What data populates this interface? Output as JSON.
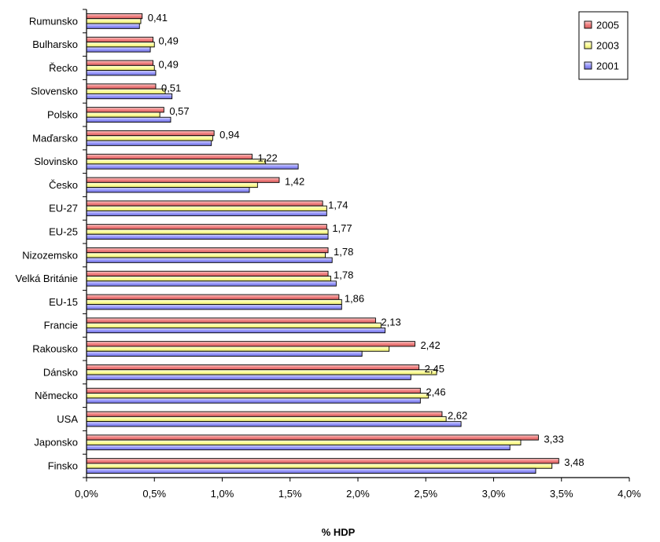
{
  "chart_data": {
    "type": "bar",
    "orientation": "horizontal",
    "xlabel": "% HDP",
    "xlim": [
      0,
      4.0
    ],
    "x_ticks": [
      "0,0%",
      "0,5%",
      "1,0%",
      "1,5%",
      "2,0%",
      "2,5%",
      "3,0%",
      "3,5%",
      "4,0%"
    ],
    "legend_position": "top-right",
    "grid": false,
    "categories": [
      "Rumunsko",
      "Bulharsko",
      "Řecko",
      "Slovensko",
      "Polsko",
      "Maďarsko",
      "Slovinsko",
      "Česko",
      "EU-27",
      "EU-25",
      "Nizozemsko",
      "Velká Británie",
      "EU-15",
      "Francie",
      "Rakousko",
      "Dánsko",
      "Německo",
      "USA",
      "Japonsko",
      "Finsko"
    ],
    "series": [
      {
        "name": "2005",
        "color": "#f08080",
        "values": [
          0.41,
          0.49,
          0.49,
          0.51,
          0.57,
          0.94,
          1.22,
          1.42,
          1.74,
          1.77,
          1.78,
          1.78,
          1.86,
          2.13,
          2.42,
          2.45,
          2.46,
          2.62,
          3.33,
          3.48
        ]
      },
      {
        "name": "2003",
        "color": "#ffff99",
        "values": [
          0.4,
          0.5,
          0.5,
          0.58,
          0.54,
          0.93,
          1.32,
          1.26,
          1.77,
          1.78,
          1.76,
          1.8,
          1.88,
          2.17,
          2.23,
          2.58,
          2.52,
          2.65,
          3.2,
          3.43
        ]
      },
      {
        "name": "2001",
        "color": "#9999ff",
        "values": [
          0.39,
          0.47,
          0.51,
          0.63,
          0.62,
          0.92,
          1.56,
          1.2,
          1.77,
          1.78,
          1.81,
          1.84,
          1.88,
          2.2,
          2.03,
          2.39,
          2.46,
          2.76,
          3.12,
          3.31
        ]
      }
    ],
    "data_labels": [
      "0,41",
      "0,49",
      "0,49",
      "0,51",
      "0,57",
      "0,94",
      "1,22",
      "1,42",
      "1,74",
      "1,77",
      "1,78",
      "1,78",
      "1,86",
      "2,13",
      "2,42",
      "2,45",
      "2,46",
      "2,62",
      "3,33",
      "3,48"
    ]
  }
}
